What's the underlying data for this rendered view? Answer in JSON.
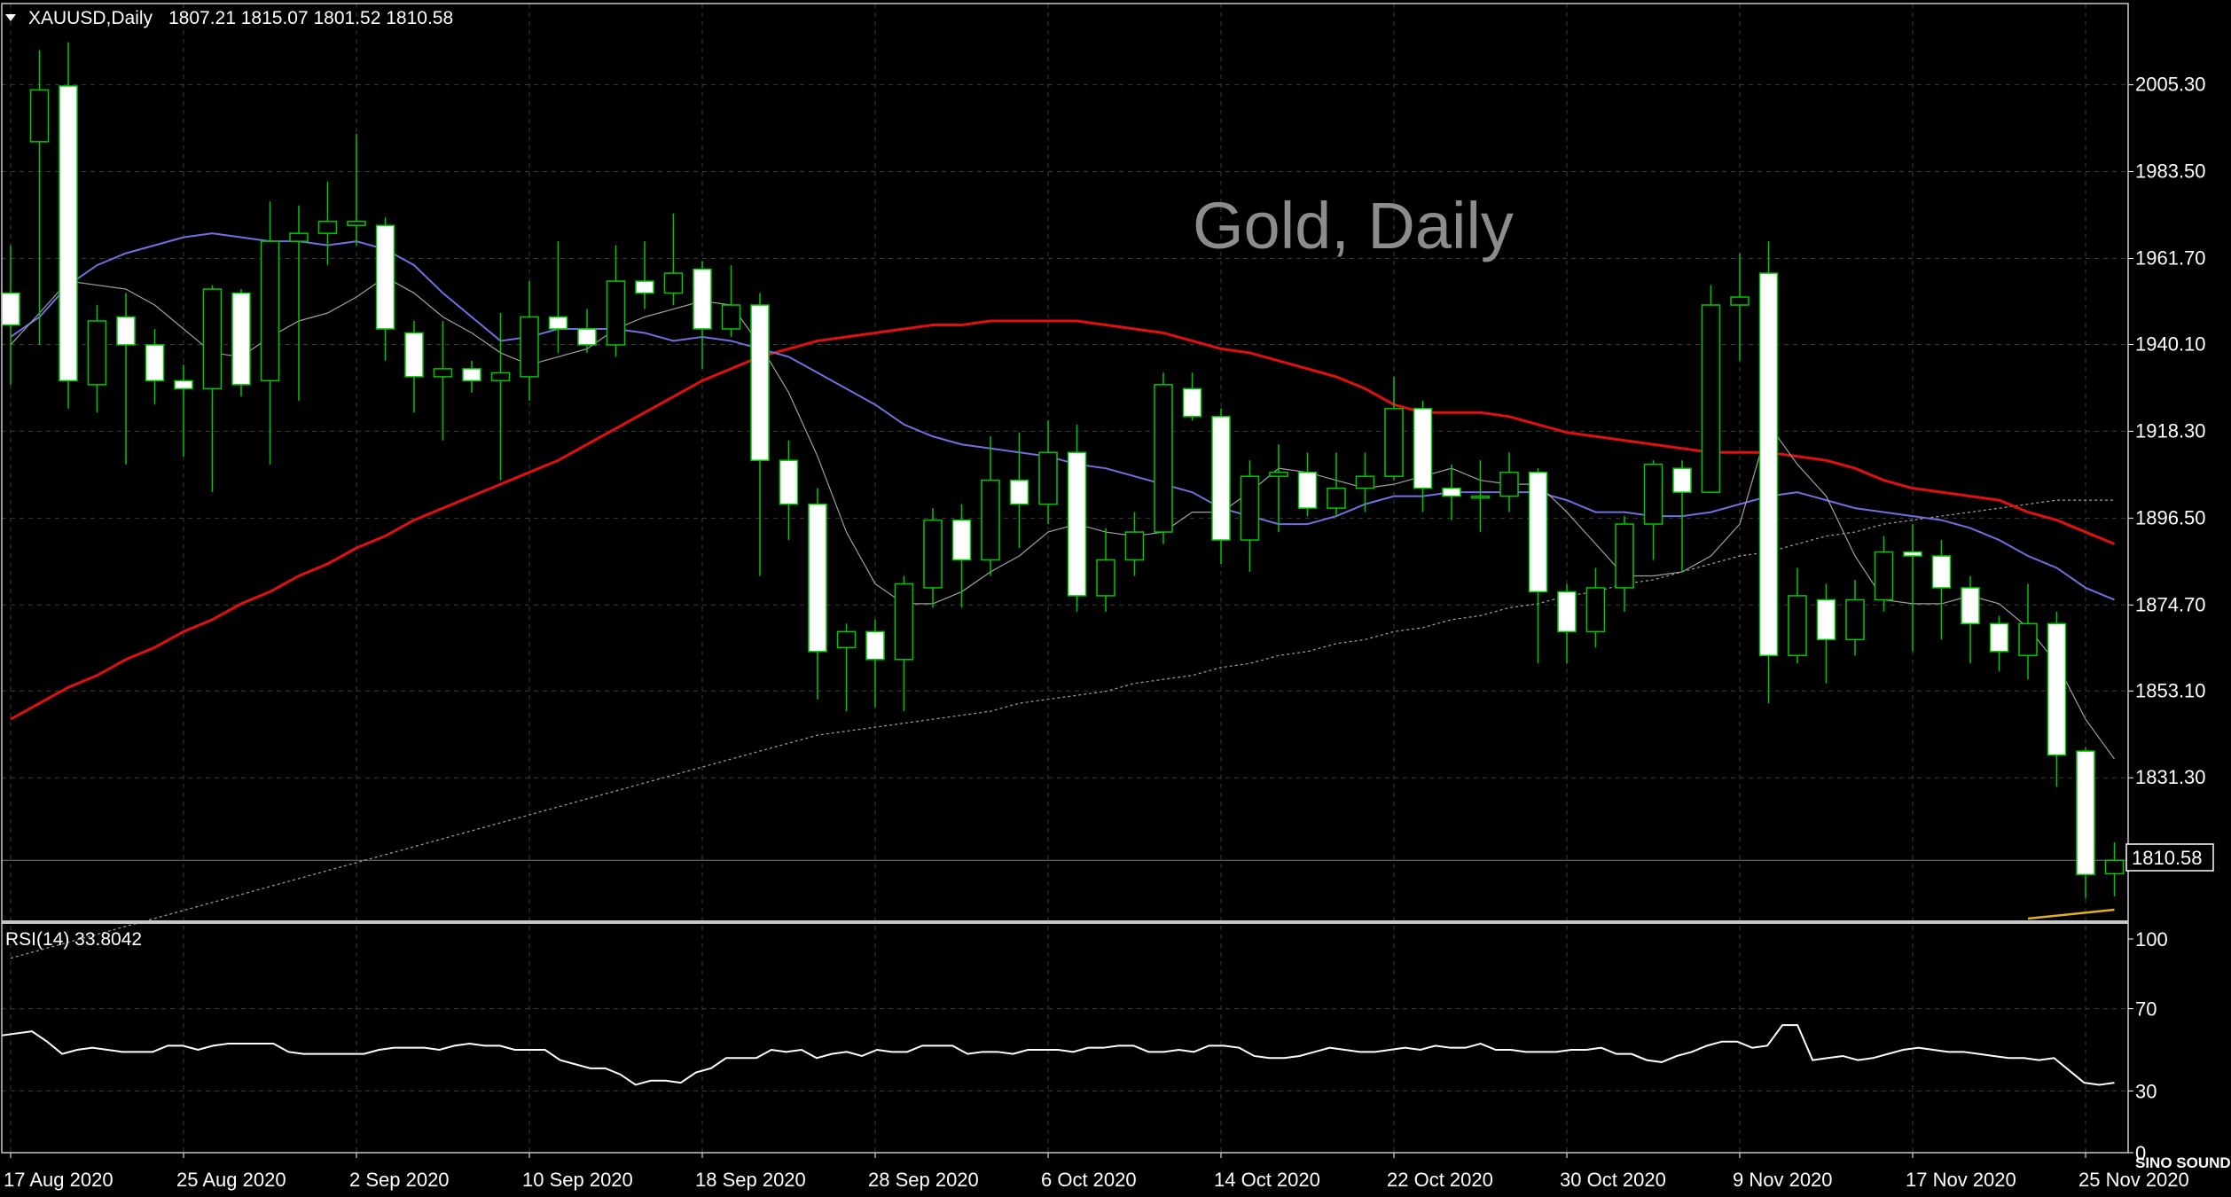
{
  "header": {
    "symbol_label": "XAUUSD,Daily",
    "ohlc_label": "1807.21 1815.07 1801.52 1810.58"
  },
  "watermark": "Gold, Daily",
  "rsi_label": "RSI(14) 33.8042",
  "current_price_label": "1810.58",
  "logo": {
    "text": "SINO SOUND"
  },
  "colors": {
    "background": "#000000",
    "grid": "#3c3c3c",
    "bull_body": "#000000",
    "bull_wick": "#00c800",
    "bear_body": "#ffffff",
    "ma_fast": "#a0a0a0",
    "ma_medium": "#7070e0",
    "ma_slow": "#e01010",
    "ma_long": "#a0a0a0",
    "ma_tail": "#e0b020",
    "rsi_line": "#ffffff"
  },
  "chart_data": [
    {
      "type": "candlestick",
      "title": "",
      "price_axis_ticks": [
        "2005.30",
        "1983.50",
        "1961.70",
        "1940.10",
        "1918.30",
        "1896.50",
        "1874.70",
        "1853.10",
        "1831.30"
      ],
      "price_axis_values": [
        2005.3,
        1983.5,
        1961.7,
        1940.1,
        1918.3,
        1896.5,
        1874.7,
        1853.1,
        1831.3
      ],
      "ylim": [
        1795.5,
        2025.7
      ],
      "date_axis_ticks": [
        "17 Aug 2020",
        "25 Aug 2020",
        "2 Sep 2020",
        "10 Sep 2020",
        "18 Sep 2020",
        "28 Sep 2020",
        "6 Oct 2020",
        "14 Oct 2020",
        "22 Oct 2020",
        "30 Oct 2020",
        "9 Nov 2020",
        "17 Nov 2020",
        "25 Nov 2020"
      ],
      "date_tick_index": [
        0,
        6,
        12,
        18,
        24,
        30,
        36,
        42,
        48,
        54,
        60,
        66,
        72
      ],
      "current_price": 1810.58,
      "grid": true,
      "candles": [
        {
          "date": "2020-08-14",
          "o": 1953.0,
          "h": 1965.0,
          "l": 1930.0,
          "c": 1945.0
        },
        {
          "date": "2020-08-17",
          "o": 1991.0,
          "h": 2014.0,
          "l": 1940.0,
          "c": 2004.0
        },
        {
          "date": "2020-08-18",
          "o": 2005.0,
          "h": 2016.0,
          "l": 1924.0,
          "c": 1931.0
        },
        {
          "date": "2020-08-19",
          "o": 1930.0,
          "h": 1950.0,
          "l": 1923.0,
          "c": 1946.0
        },
        {
          "date": "2020-08-20",
          "o": 1947.0,
          "h": 1953.0,
          "l": 1910.0,
          "c": 1940.0
        },
        {
          "date": "2020-08-21",
          "o": 1940.0,
          "h": 1944.0,
          "l": 1925.0,
          "c": 1931.0
        },
        {
          "date": "2020-08-24",
          "o": 1931.0,
          "h": 1935.0,
          "l": 1912.0,
          "c": 1929.0
        },
        {
          "date": "2020-08-25",
          "o": 1929.0,
          "h": 1955.0,
          "l": 1903.0,
          "c": 1954.0
        },
        {
          "date": "2020-08-26",
          "o": 1953.0,
          "h": 1954.0,
          "l": 1927.0,
          "c": 1930.0
        },
        {
          "date": "2020-08-27",
          "o": 1931.0,
          "h": 1976.0,
          "l": 1910.0,
          "c": 1966.0
        },
        {
          "date": "2020-08-28",
          "o": 1966.0,
          "h": 1975.0,
          "l": 1926.0,
          "c": 1968.0
        },
        {
          "date": "2020-08-31",
          "o": 1968.0,
          "h": 1981.0,
          "l": 1960.0,
          "c": 1971.0
        },
        {
          "date": "2020-09-01",
          "o": 1970.0,
          "h": 1993.0,
          "l": 1965.0,
          "c": 1971.0
        },
        {
          "date": "2020-09-02",
          "o": 1970.0,
          "h": 1972.0,
          "l": 1936.0,
          "c": 1944.0
        },
        {
          "date": "2020-09-03",
          "o": 1943.0,
          "h": 1946.0,
          "l": 1923.0,
          "c": 1932.0
        },
        {
          "date": "2020-09-04",
          "o": 1932.0,
          "h": 1946.0,
          "l": 1916.0,
          "c": 1934.0
        },
        {
          "date": "2020-09-07",
          "o": 1934.0,
          "h": 1936.0,
          "l": 1928.0,
          "c": 1931.0
        },
        {
          "date": "2020-09-08",
          "o": 1931.0,
          "h": 1948.0,
          "l": 1906.0,
          "c": 1933.0
        },
        {
          "date": "2020-09-09",
          "o": 1932.0,
          "h": 1956.0,
          "l": 1926.0,
          "c": 1947.0
        },
        {
          "date": "2020-09-10",
          "o": 1947.0,
          "h": 1966.0,
          "l": 1938.0,
          "c": 1944.0
        },
        {
          "date": "2020-09-11",
          "o": 1944.0,
          "h": 1949.0,
          "l": 1938.0,
          "c": 1940.0
        },
        {
          "date": "2020-09-14",
          "o": 1940.0,
          "h": 1965.0,
          "l": 1937.0,
          "c": 1956.0
        },
        {
          "date": "2020-09-15",
          "o": 1956.0,
          "h": 1966.0,
          "l": 1949.0,
          "c": 1953.0
        },
        {
          "date": "2020-09-16",
          "o": 1953.0,
          "h": 1973.0,
          "l": 1950.0,
          "c": 1958.0
        },
        {
          "date": "2020-09-17",
          "o": 1959.0,
          "h": 1961.0,
          "l": 1934.0,
          "c": 1944.0
        },
        {
          "date": "2020-09-18",
          "o": 1944.0,
          "h": 1960.0,
          "l": 1942.0,
          "c": 1950.0
        },
        {
          "date": "2020-09-21",
          "o": 1950.0,
          "h": 1953.0,
          "l": 1882.0,
          "c": 1911.0
        },
        {
          "date": "2020-09-22",
          "o": 1911.0,
          "h": 1916.0,
          "l": 1891.0,
          "c": 1900.0
        },
        {
          "date": "2020-09-23",
          "o": 1900.0,
          "h": 1904.0,
          "l": 1851.0,
          "c": 1863.0
        },
        {
          "date": "2020-09-24",
          "o": 1864.0,
          "h": 1870.0,
          "l": 1848.0,
          "c": 1868.0
        },
        {
          "date": "2020-09-25",
          "o": 1868.0,
          "h": 1871.0,
          "l": 1849.0,
          "c": 1861.0
        },
        {
          "date": "2020-09-28",
          "o": 1861.0,
          "h": 1882.0,
          "l": 1848.0,
          "c": 1880.0
        },
        {
          "date": "2020-09-29",
          "o": 1879.0,
          "h": 1899.0,
          "l": 1874.0,
          "c": 1896.0
        },
        {
          "date": "2020-09-30",
          "o": 1896.0,
          "h": 1900.0,
          "l": 1874.0,
          "c": 1886.0
        },
        {
          "date": "2020-10-01",
          "o": 1886.0,
          "h": 1917.0,
          "l": 1882.0,
          "c": 1906.0
        },
        {
          "date": "2020-10-02",
          "o": 1906.0,
          "h": 1918.0,
          "l": 1889.0,
          "c": 1900.0
        },
        {
          "date": "2020-10-05",
          "o": 1900.0,
          "h": 1921.0,
          "l": 1895.0,
          "c": 1913.0
        },
        {
          "date": "2020-10-06",
          "o": 1913.0,
          "h": 1920.0,
          "l": 1873.0,
          "c": 1877.0
        },
        {
          "date": "2020-10-07",
          "o": 1877.0,
          "h": 1894.0,
          "l": 1873.0,
          "c": 1886.0
        },
        {
          "date": "2020-10-08",
          "o": 1886.0,
          "h": 1898.0,
          "l": 1882.0,
          "c": 1893.0
        },
        {
          "date": "2020-10-09",
          "o": 1893.0,
          "h": 1933.0,
          "l": 1890.0,
          "c": 1930.0
        },
        {
          "date": "2020-10-12",
          "o": 1929.0,
          "h": 1933.0,
          "l": 1921.0,
          "c": 1922.0
        },
        {
          "date": "2020-10-13",
          "o": 1922.0,
          "h": 1924.0,
          "l": 1885.0,
          "c": 1891.0
        },
        {
          "date": "2020-10-14",
          "o": 1891.0,
          "h": 1911.0,
          "l": 1883.0,
          "c": 1907.0
        },
        {
          "date": "2020-10-15",
          "o": 1907.0,
          "h": 1915.0,
          "l": 1893.0,
          "c": 1908.0
        },
        {
          "date": "2020-10-16",
          "o": 1908.0,
          "h": 1913.0,
          "l": 1897.0,
          "c": 1899.0
        },
        {
          "date": "2020-10-19",
          "o": 1899.0,
          "h": 1913.0,
          "l": 1897.0,
          "c": 1904.0
        },
        {
          "date": "2020-10-20",
          "o": 1904.0,
          "h": 1913.0,
          "l": 1898.0,
          "c": 1907.0
        },
        {
          "date": "2020-10-21",
          "o": 1907.0,
          "h": 1932.0,
          "l": 1906.0,
          "c": 1924.0
        },
        {
          "date": "2020-10-22",
          "o": 1924.0,
          "h": 1926.0,
          "l": 1898.0,
          "c": 1904.0
        },
        {
          "date": "2020-10-23",
          "o": 1904.0,
          "h": 1910.0,
          "l": 1896.0,
          "c": 1902.0
        },
        {
          "date": "2020-10-26",
          "o": 1902.0,
          "h": 1911.0,
          "l": 1893.0,
          "c": 1902.0
        },
        {
          "date": "2020-10-27",
          "o": 1902.0,
          "h": 1913.0,
          "l": 1898.0,
          "c": 1908.0
        },
        {
          "date": "2020-10-28",
          "o": 1908.0,
          "h": 1909.0,
          "l": 1860.0,
          "c": 1878.0
        },
        {
          "date": "2020-10-29",
          "o": 1878.0,
          "h": 1880.0,
          "l": 1860.0,
          "c": 1868.0
        },
        {
          "date": "2020-10-30",
          "o": 1868.0,
          "h": 1884.0,
          "l": 1864.0,
          "c": 1879.0
        },
        {
          "date": "2020-11-02",
          "o": 1879.0,
          "h": 1897.0,
          "l": 1873.0,
          "c": 1895.0
        },
        {
          "date": "2020-11-03",
          "o": 1895.0,
          "h": 1911.0,
          "l": 1886.0,
          "c": 1910.0
        },
        {
          "date": "2020-11-04",
          "o": 1909.0,
          "h": 1911.0,
          "l": 1883.0,
          "c": 1903.0
        },
        {
          "date": "2020-11-05",
          "o": 1903.0,
          "h": 1955.0,
          "l": 1903.0,
          "c": 1950.0
        },
        {
          "date": "2020-11-06",
          "o": 1950.0,
          "h": 1963.0,
          "l": 1936.0,
          "c": 1952.0
        },
        {
          "date": "2020-11-09",
          "o": 1958.0,
          "h": 1966.0,
          "l": 1850.0,
          "c": 1862.0
        },
        {
          "date": "2020-11-10",
          "o": 1862.0,
          "h": 1884.0,
          "l": 1860.0,
          "c": 1877.0
        },
        {
          "date": "2020-11-11",
          "o": 1876.0,
          "h": 1880.0,
          "l": 1855.0,
          "c": 1866.0
        },
        {
          "date": "2020-11-12",
          "o": 1866.0,
          "h": 1881.0,
          "l": 1862.0,
          "c": 1876.0
        },
        {
          "date": "2020-11-13",
          "o": 1876.0,
          "h": 1892.0,
          "l": 1873.0,
          "c": 1888.0
        },
        {
          "date": "2020-11-16",
          "o": 1888.0,
          "h": 1895.0,
          "l": 1863.0,
          "c": 1887.0
        },
        {
          "date": "2020-11-17",
          "o": 1887.0,
          "h": 1891.0,
          "l": 1866.0,
          "c": 1879.0
        },
        {
          "date": "2020-11-18",
          "o": 1879.0,
          "h": 1882.0,
          "l": 1860.0,
          "c": 1870.0
        },
        {
          "date": "2020-11-19",
          "o": 1870.0,
          "h": 1872.0,
          "l": 1858.0,
          "c": 1863.0
        },
        {
          "date": "2020-11-20",
          "o": 1862.0,
          "h": 1880.0,
          "l": 1856.0,
          "c": 1870.0
        },
        {
          "date": "2020-11-23",
          "o": 1870.0,
          "h": 1873.0,
          "l": 1829.0,
          "c": 1837.0
        },
        {
          "date": "2020-11-24",
          "o": 1838.0,
          "h": 1839.0,
          "l": 1801.0,
          "c": 1807.0
        },
        {
          "date": "2020-11-25",
          "o": 1807.21,
          "h": 1815.07,
          "l": 1801.52,
          "c": 1810.58
        }
      ],
      "ma_fast": [
        1940,
        1948,
        1956,
        1955,
        1954,
        1950,
        1944,
        1938,
        1937,
        1942,
        1946,
        1948,
        1952,
        1957,
        1953,
        1947,
        1943,
        1938,
        1935,
        1937,
        1939,
        1944,
        1947,
        1949,
        1951,
        1950,
        1940,
        1928,
        1912,
        1893,
        1880,
        1875,
        1875,
        1878,
        1883,
        1887,
        1893,
        1895,
        1893,
        1892,
        1893,
        1898,
        1898,
        1903,
        1909,
        1908,
        1906,
        1904,
        1905,
        1907,
        1909,
        1906,
        1905,
        1905,
        1898,
        1890,
        1882,
        1882,
        1883,
        1887,
        1895,
        1920,
        1910,
        1902,
        1887,
        1876,
        1875,
        1875,
        1877,
        1875,
        1869,
        1860,
        1846,
        1836
      ],
      "ma_medium": [
        1942,
        1947,
        1955,
        1960,
        1963,
        1965,
        1967,
        1968,
        1967,
        1966,
        1966,
        1965,
        1966,
        1964,
        1960,
        1953,
        1947,
        1941,
        1942,
        1944,
        1944,
        1944,
        1943,
        1941,
        1942,
        1941,
        1939,
        1937,
        1933,
        1929,
        1925,
        1920,
        1917,
        1915,
        1914,
        1913,
        1912,
        1910,
        1909,
        1907,
        1905,
        1903,
        1899,
        1897,
        1895,
        1895,
        1897,
        1900,
        1902,
        1902,
        1903,
        1903,
        1903,
        1903,
        1901,
        1898,
        1898,
        1897,
        1897,
        1898,
        1900,
        1902,
        1903,
        1901,
        1899,
        1898,
        1897,
        1896,
        1894,
        1891,
        1887,
        1884,
        1879,
        1876
      ],
      "ma_slow": [
        1846,
        1850,
        1854,
        1857,
        1861,
        1864,
        1868,
        1871,
        1875,
        1878,
        1882,
        1885,
        1889,
        1892,
        1896,
        1899,
        1902,
        1905,
        1908,
        1911,
        1915,
        1919,
        1923,
        1927,
        1931,
        1934,
        1937,
        1939,
        1941,
        1942,
        1943,
        1944,
        1945,
        1945,
        1946,
        1946,
        1946,
        1946,
        1945,
        1944,
        1943,
        1941,
        1939,
        1938,
        1936,
        1934,
        1932,
        1929,
        1925,
        1923,
        1923,
        1923,
        1922,
        1920,
        1918,
        1917,
        1916,
        1915,
        1914,
        1913,
        1913,
        1913,
        1912,
        1911,
        1909,
        1906,
        1904,
        1903,
        1902,
        1901,
        1898,
        1896,
        1893,
        1890
      ],
      "ma_long": [
        1786,
        1788,
        1790,
        1792,
        1794,
        1796,
        1798,
        1800,
        1802,
        1804,
        1806,
        1808,
        1810,
        1812,
        1814,
        1816,
        1818,
        1820,
        1822,
        1824,
        1826,
        1828,
        1830,
        1832,
        1834,
        1836,
        1838,
        1840,
        1842,
        1843,
        1844,
        1845,
        1846,
        1847,
        1848,
        1850,
        1851,
        1852,
        1853,
        1855,
        1856,
        1857,
        1859,
        1860,
        1862,
        1863,
        1865,
        1866,
        1868,
        1869,
        1871,
        1872,
        1874,
        1875,
        1877,
        1878,
        1880,
        1881,
        1883,
        1885,
        1887,
        1888,
        1890,
        1892,
        1893,
        1895,
        1896,
        1897,
        1898,
        1899,
        1900,
        1901,
        1901,
        1901
      ]
    },
    {
      "type": "line",
      "title": "RSI(14) 33.8042",
      "axis_ticks": [
        "100",
        "70",
        "30",
        "0"
      ],
      "axis_values": [
        100,
        70,
        30,
        0
      ],
      "ylim": [
        0,
        100
      ],
      "values": [
        57,
        58,
        59,
        54,
        48,
        50,
        51,
        50,
        49,
        49,
        49,
        52,
        52,
        50,
        52,
        53,
        53,
        53,
        53,
        49,
        48,
        48,
        48,
        48,
        48,
        50,
        51,
        51,
        51,
        50,
        52,
        53,
        52,
        52,
        50,
        50,
        50,
        45,
        43,
        41,
        41,
        38,
        33,
        35,
        35,
        34,
        39,
        41,
        46,
        46,
        46,
        50,
        49,
        50,
        46,
        48,
        49,
        47,
        50,
        49,
        49,
        52,
        52,
        52,
        48,
        49,
        49,
        48,
        50,
        50,
        50,
        49,
        51,
        51,
        52,
        52,
        49,
        49,
        50,
        49,
        52,
        52,
        51,
        47,
        46,
        46,
        47,
        49,
        51,
        50,
        49,
        49,
        50,
        51,
        50,
        52,
        51,
        51,
        53,
        50,
        50,
        49,
        49,
        49,
        50,
        50,
        51,
        48,
        48,
        45,
        44,
        47,
        49,
        52,
        54,
        54,
        51,
        52,
        62,
        62,
        45,
        46,
        47,
        45,
        46,
        48,
        50,
        51,
        50,
        49,
        49,
        48,
        47,
        46,
        46,
        45,
        46,
        40,
        34,
        33,
        34
      ]
    }
  ]
}
